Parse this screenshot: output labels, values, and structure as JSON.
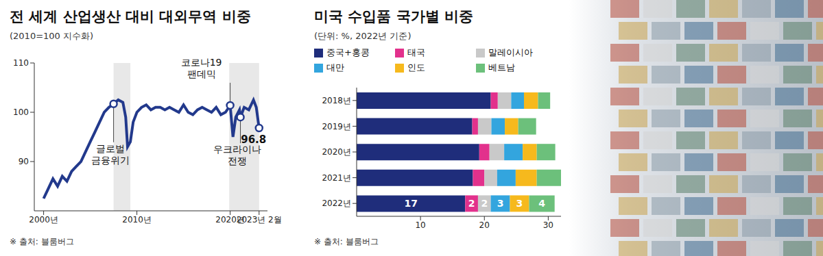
{
  "chart_data": [
    {
      "type": "line",
      "title": "전 세계 산업생산 대비 대외무역 비중",
      "subtitle": "(2010=100 지수화)",
      "source": "※ 출처: 블룸버그",
      "color": "#22398c",
      "x": [
        2000.0,
        2000.5,
        2001.0,
        2001.5,
        2002.0,
        2002.5,
        2003.0,
        2003.5,
        2004.0,
        2004.5,
        2005.0,
        2005.5,
        2006.0,
        2006.5,
        2007.0,
        2007.5,
        2008.0,
        2008.5,
        2008.8,
        2009.0,
        2009.3,
        2009.6,
        2010.0,
        2010.5,
        2011.0,
        2011.5,
        2012.0,
        2012.5,
        2013.0,
        2013.5,
        2014.0,
        2014.5,
        2015.0,
        2015.5,
        2016.0,
        2016.5,
        2017.0,
        2017.5,
        2018.0,
        2018.5,
        2019.0,
        2019.5,
        2020.0,
        2020.3,
        2020.6,
        2021.0,
        2021.1,
        2021.5,
        2022.0,
        2022.5,
        2022.8,
        2023.1
      ],
      "values": [
        82.5,
        84.5,
        86.5,
        85,
        87,
        86,
        88,
        89,
        90,
        92,
        94,
        96,
        98,
        100,
        101,
        101.7,
        102.5,
        102,
        99,
        93,
        94,
        98,
        100,
        101,
        101.5,
        100.5,
        101,
        101,
        100.5,
        101,
        100.5,
        100,
        101.5,
        100,
        99.5,
        100.5,
        101,
        100.5,
        100,
        101,
        99.5,
        100,
        101.4,
        95,
        99,
        100.5,
        99,
        101,
        100.5,
        102.5,
        101,
        96.8
      ],
      "xlim": [
        1999,
        2024
      ],
      "xticks": [
        {
          "value": 2000,
          "label": "2000년"
        },
        {
          "value": 2010,
          "label": "2010년"
        },
        {
          "value": 2020,
          "label": "2020년"
        },
        {
          "value": 2023.1,
          "label": "2023년 2월"
        }
      ],
      "ylim": [
        80,
        110
      ],
      "yticks": [
        90,
        100,
        110
      ],
      "grid": false,
      "shaded_periods": [
        [
          2007.5,
          2009.3
        ],
        [
          2019.9,
          2023.1
        ]
      ],
      "annotations": [
        {
          "x": 2007.5,
          "y": 101.7,
          "text": [
            "글로벌",
            "금융위기"
          ]
        },
        {
          "x": 2020.0,
          "y": 101.4,
          "text": [
            "코로나19",
            "팬데믹"
          ]
        },
        {
          "x": 2021.1,
          "y": 99,
          "text": [
            "우크라이나",
            "전쟁"
          ]
        },
        {
          "x": 2023.1,
          "y": 96.8,
          "text": [
            "96.8"
          ]
        }
      ]
    },
    {
      "type": "bar",
      "title": "미국 수입품 국가별 비중",
      "subtitle": "(단위: %, 2022년 기준)",
      "source": "※ 출처: 블룸버그",
      "orientation": "horizontal",
      "stacked": true,
      "legend": "top",
      "grid": false,
      "categories": [
        "2018년",
        "2019년",
        "2020년",
        "2021년",
        "2022년"
      ],
      "xlim": [
        0,
        32
      ],
      "xticks": [
        10,
        20,
        30
      ],
      "series": [
        {
          "name": "중국+홍콩",
          "color": "#1f2d7b",
          "values": [
            21,
            18.1,
            19.2,
            18.2,
            17
          ],
          "value_labels": [
            null,
            null,
            null,
            null,
            "17"
          ]
        },
        {
          "name": "태국",
          "color": "#e2318c",
          "values": [
            1.1,
            0.9,
            1.6,
            1.8,
            2
          ],
          "value_labels": [
            null,
            null,
            null,
            null,
            "2"
          ]
        },
        {
          "name": "말레이시아",
          "color": "#c9c9c9",
          "values": [
            2.1,
            2.1,
            2.3,
            2.0,
            2
          ],
          "value_labels": [
            null,
            null,
            null,
            null,
            "2"
          ]
        },
        {
          "name": "대만",
          "color": "#33a5de",
          "values": [
            2,
            2.1,
            2.9,
            2.9,
            3
          ],
          "value_labels": [
            null,
            null,
            null,
            null,
            "3"
          ]
        },
        {
          "name": "인도",
          "color": "#f6b91d",
          "values": [
            2.2,
            2.1,
            2.2,
            3.3,
            3
          ],
          "value_labels": [
            null,
            null,
            null,
            null,
            "3"
          ]
        },
        {
          "name": "베트남",
          "color": "#6cc07b",
          "values": [
            1.9,
            2.8,
            2.9,
            3.8,
            4
          ],
          "value_labels": [
            null,
            null,
            null,
            null,
            "4"
          ]
        }
      ]
    }
  ]
}
